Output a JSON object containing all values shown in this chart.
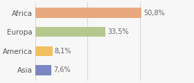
{
  "categories": [
    "Africa",
    "Europa",
    "America",
    "Asia"
  ],
  "values": [
    50.8,
    33.5,
    8.1,
    7.6
  ],
  "labels": [
    "50,8%",
    "33,5%",
    "8,1%",
    "7,6%"
  ],
  "bar_colors": [
    "#e8a97e",
    "#b5c98e",
    "#f0c060",
    "#7b86c2"
  ],
  "background_color": "#f7f7f7",
  "xlim": [
    0,
    75
  ],
  "label_fontsize": 7,
  "category_fontsize": 7.5,
  "bar_height": 0.52
}
